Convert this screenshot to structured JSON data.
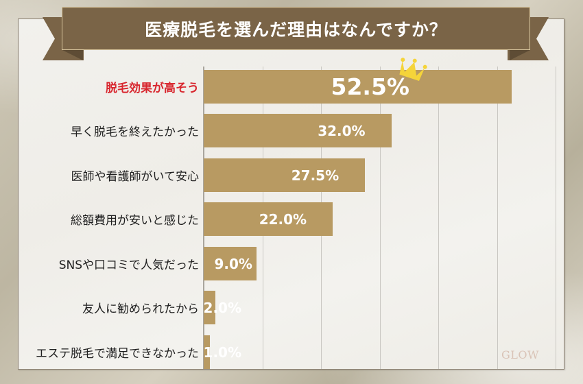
{
  "header": {
    "title": "医療脱毛を選んだ理由はなんですか？"
  },
  "colors": {
    "bar": "#b89a62",
    "banner": "#7a6447",
    "highlight_label": "#d8262e",
    "crown": "#f5d43a"
  },
  "watermark": "GLOW",
  "chart_data": {
    "type": "bar",
    "orientation": "horizontal",
    "title": "医療脱毛を選んだ理由はなんですか？",
    "xlabel": "",
    "ylabel": "",
    "unit": "%",
    "xlim": [
      0,
      60
    ],
    "grid": true,
    "grid_step": 10,
    "categories": [
      "脱毛効果が高そう",
      "早く脱毛を終えたかった",
      "医師や看護師がいて安心",
      "総額費用が安いと感じた",
      "SNSや口コミで人気だった",
      "友人に勧められたから",
      "エステ脱毛で満足できなかった"
    ],
    "values": [
      52.5,
      32.0,
      27.5,
      22.0,
      9.0,
      2.0,
      1.0
    ],
    "value_labels": [
      "52.5%",
      "32.0%",
      "27.5%",
      "22.0%",
      "9.0%",
      "2.0%",
      "1.0%"
    ],
    "annotations": [
      {
        "category": "脱毛効果が高そう",
        "type": "crown-icon",
        "note": "top answer highlighted in red"
      }
    ]
  }
}
